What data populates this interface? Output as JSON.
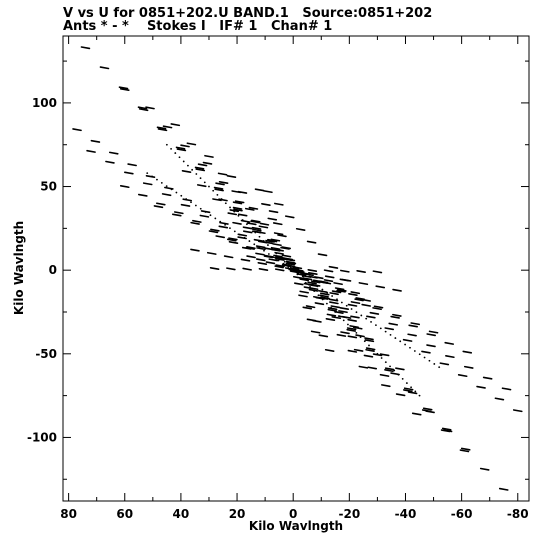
{
  "header": {
    "line1": "V vs U for 0851+202.U BAND.1   Source:0851+202",
    "line2": "Ants * - *    Stokes I   IF# 1   Chan# 1"
  },
  "chart_data": {
    "type": "scatter",
    "title": "V vs U for 0851+202.U BAND.1   Source:0851+202",
    "subtitle": "Ants * - *    Stokes I   IF# 1   Chan# 1",
    "xlabel": "Kilo Wavlngth",
    "ylabel": "Kilo Wavlngth",
    "xlim": [
      82,
      -84
    ],
    "ylim": [
      -138,
      140
    ],
    "x_reversed": true,
    "grid": false,
    "x_ticks": [
      80,
      60,
      40,
      20,
      0,
      -20,
      -40,
      -60,
      -80
    ],
    "x_tick_labels": [
      "80",
      "60",
      "40",
      "20",
      "0",
      "-20",
      "-40",
      "-60",
      "-80"
    ],
    "y_ticks": [
      100,
      50,
      0,
      -50,
      -100
    ],
    "y_tick_labels": [
      "100",
      "50",
      "0",
      "-50",
      "-100"
    ],
    "marker_color": "#000000",
    "tracks": [
      {
        "u_start": 77,
        "v_start": 84,
        "u_end": -80,
        "v_end": -84,
        "segments": 24
      },
      {
        "u_start": 74,
        "v_start": 133,
        "u_end": -75,
        "v_end": -131,
        "segments": 22
      },
      {
        "u_start": 72,
        "v_start": 71,
        "u_end": -76,
        "v_end": -71,
        "segments": 22
      },
      {
        "u_start": 60,
        "v_start": 108,
        "u_end": -61,
        "v_end": -108,
        "segments": 18
      },
      {
        "u_start": 60,
        "v_start": 50,
        "u_end": -62,
        "v_end": -49,
        "segments": 19
      },
      {
        "u_start": 51,
        "v_start": 97,
        "u_end": -55,
        "v_end": -96,
        "segments": 17
      },
      {
        "u_start": 48,
        "v_start": 38,
        "u_end": -50,
        "v_end": -37,
        "segments": 15
      },
      {
        "u_start": 42,
        "v_start": 87,
        "u_end": -44,
        "v_end": -86,
        "segments": 15
      },
      {
        "u_start": 30,
        "v_start": 68,
        "u_end": -33,
        "v_end": -69,
        "segments": 13
      },
      {
        "u_start": 22,
        "v_start": 56,
        "u_end": -25,
        "v_end": -58,
        "segments": 12
      },
      {
        "u_start": 12,
        "v_start": 48,
        "u_end": -13,
        "v_end": -48,
        "segments": 11
      },
      {
        "u_start": 9,
        "v_start": 47,
        "u_end": -26,
        "v_end": -21,
        "segments": 9
      },
      {
        "u_start": 18,
        "v_start": 33,
        "u_end": -21,
        "v_end": -30,
        "segments": 12
      },
      {
        "u_start": 7,
        "v_start": 35,
        "u_end": -8,
        "v_end": -37,
        "segments": 10
      },
      {
        "u_start": 25,
        "v_start": 42,
        "u_end": -27,
        "v_end": -41,
        "segments": 13
      },
      {
        "u_start": 20,
        "v_start": 28,
        "u_end": -22,
        "v_end": -28,
        "segments": 11
      },
      {
        "u_start": 26,
        "v_start": 20,
        "u_end": -26,
        "v_end": -18,
        "segments": 11
      },
      {
        "u_start": 15,
        "v_start": 8,
        "u_end": -16,
        "v_end": -8,
        "segments": 9
      },
      {
        "u_start": 38,
        "v_start": 59,
        "u_end": -38,
        "v_end": -59,
        "segments": 14
      },
      {
        "u_start": 35,
        "v_start": 12,
        "u_end": -37,
        "v_end": -12,
        "segments": 12
      },
      {
        "u_start": 28,
        "v_start": 1,
        "u_end": -30,
        "v_end": -1,
        "segments": 10
      }
    ],
    "center_dotted_lines": [
      {
        "u_start": 52,
        "v_start": 58,
        "u_end": -52,
        "v_end": -58,
        "dots": 60
      },
      {
        "u_start": 45,
        "v_start": 75,
        "u_end": -45,
        "v_end": -75,
        "dots": 60
      }
    ]
  }
}
